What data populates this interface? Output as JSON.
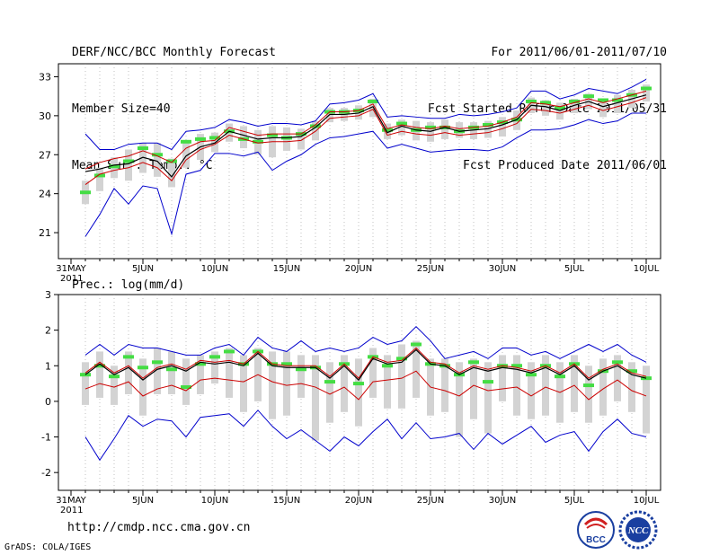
{
  "header": {
    "title": "DERF/NCC/BCC Monthly Forecast",
    "member_size": "Member Size=40",
    "variable": "Mean Surf. Temp.: °C",
    "period": "For 2011/06/01-2011/07/10",
    "start_date": "Fcst Started Refer Date 2011/05/31",
    "produced_date": "Fcst Produced Date 2011/06/01"
  },
  "footer": {
    "url": "http://cmdp.ncc.cma.gov.cn",
    "grads": "GrADS: COLA/IGES",
    "logo_bcc": "BCC",
    "logo_ncc": "NCC"
  },
  "colors": {
    "envelope": "#0000cc",
    "lower": "#cc0000",
    "mean": "#000000",
    "box": "#d3d3d3",
    "median": "#44dd44"
  },
  "chart_data": [
    {
      "type": "box-line",
      "name": "temperature",
      "title": "Mean Surf. Temp.: °C",
      "x_tick_labels": [
        "31MAY",
        "5JUN",
        "10JUN",
        "15JUN",
        "20JUN",
        "25JUN",
        "30JUN",
        "5JUL",
        "10JUL"
      ],
      "x_tick_days": [
        0,
        5,
        10,
        15,
        20,
        25,
        30,
        35,
        40
      ],
      "x_year_label": "2011",
      "ylim": [
        19,
        34
      ],
      "yticks": [
        21,
        24,
        27,
        30,
        33
      ],
      "days": [
        1,
        2,
        3,
        4,
        5,
        6,
        7,
        8,
        9,
        10,
        11,
        12,
        13,
        14,
        15,
        16,
        17,
        18,
        19,
        20,
        21,
        22,
        23,
        24,
        25,
        26,
        27,
        28,
        29,
        30,
        31,
        32,
        33,
        34,
        35,
        36,
        37,
        38,
        39,
        40
      ],
      "max": [
        28.6,
        27.4,
        27.4,
        27.8,
        27.9,
        27.9,
        27.4,
        28.8,
        28.9,
        29.1,
        29.7,
        29.5,
        29.2,
        29.4,
        29.4,
        29.3,
        29.6,
        30.9,
        31.0,
        31.2,
        31.7,
        29.9,
        30.0,
        29.9,
        29.8,
        29.8,
        30.1,
        30.0,
        30.1,
        30.3,
        30.6,
        31.9,
        31.9,
        31.3,
        31.6,
        32.1,
        31.9,
        31.7,
        32.2,
        32.8
      ],
      "mean": [
        25.7,
        25.9,
        26.2,
        26.3,
        26.8,
        26.5,
        25.3,
        26.9,
        27.6,
        27.9,
        28.8,
        28.5,
        28.2,
        28.3,
        28.3,
        28.4,
        29.1,
        30.1,
        30.1,
        30.2,
        30.7,
        28.7,
        29.2,
        28.9,
        28.8,
        29.1,
        28.8,
        28.9,
        29.0,
        29.3,
        29.7,
        30.8,
        30.7,
        30.4,
        30.8,
        31.1,
        30.7,
        31.0,
        31.3,
        31.6
      ],
      "upper": [
        25.9,
        26.4,
        26.7,
        26.9,
        27.3,
        26.9,
        26.4,
        27.5,
        28.0,
        28.1,
        29.1,
        28.8,
        28.5,
        28.6,
        28.6,
        28.6,
        29.3,
        30.3,
        30.3,
        30.4,
        30.9,
        29.0,
        29.3,
        29.1,
        29.0,
        29.2,
        29.0,
        29.1,
        29.2,
        29.5,
        29.9,
        31.0,
        30.9,
        30.7,
        31.0,
        31.3,
        31.0,
        31.3,
        31.6,
        31.9
      ],
      "lower": [
        24.7,
        25.5,
        25.8,
        26.0,
        26.4,
        26.0,
        25.0,
        26.6,
        27.4,
        27.8,
        28.5,
        28.2,
        27.9,
        28.0,
        28.0,
        28.1,
        28.8,
        29.8,
        29.9,
        30.0,
        30.5,
        28.5,
        28.8,
        28.6,
        28.5,
        28.7,
        28.5,
        28.6,
        28.7,
        29.0,
        29.4,
        30.5,
        30.4,
        30.2,
        30.5,
        30.8,
        30.4,
        30.7,
        31.0,
        31.4
      ],
      "min": [
        20.7,
        22.4,
        24.4,
        23.2,
        24.6,
        24.4,
        20.9,
        25.5,
        25.8,
        27.1,
        27.1,
        26.9,
        27.2,
        25.8,
        26.5,
        27.0,
        27.8,
        28.3,
        28.4,
        28.6,
        28.8,
        27.5,
        27.8,
        27.5,
        27.2,
        27.3,
        27.4,
        27.4,
        27.3,
        27.6,
        28.3,
        28.9,
        28.9,
        29.0,
        29.3,
        29.7,
        29.4,
        29.6,
        30.2,
        30.2
      ],
      "box_high": [
        25.0,
        26.0,
        26.8,
        27.4,
        27.9,
        27.9,
        26.7,
        27.9,
        28.6,
        28.7,
        29.4,
        29.2,
        28.9,
        29.2,
        29.1,
        29.0,
        29.6,
        30.6,
        30.6,
        30.8,
        31.3,
        29.4,
        29.7,
        29.6,
        29.5,
        29.7,
        29.5,
        29.5,
        29.6,
        29.9,
        30.4,
        31.4,
        31.2,
        31.0,
        31.3,
        31.7,
        31.3,
        31.6,
        32.0,
        32.4
      ],
      "box_low": [
        23.2,
        24.2,
        25.2,
        25.0,
        25.6,
        25.3,
        24.5,
        26.0,
        26.6,
        27.2,
        28.0,
        27.5,
        27.0,
        26.8,
        27.3,
        27.4,
        28.1,
        29.5,
        29.6,
        29.7,
        29.9,
        28.2,
        28.5,
        28.1,
        28.0,
        28.2,
        28.3,
        28.2,
        28.3,
        28.4,
        28.9,
        30.2,
        30.0,
        29.7,
        30.2,
        30.5,
        29.9,
        30.2,
        30.6,
        31.1
      ],
      "median": [
        24.1,
        25.4,
        26.1,
        26.5,
        27.5,
        27.0,
        26.5,
        28.0,
        28.2,
        28.3,
        28.8,
        28.2,
        28.0,
        28.5,
        28.3,
        28.6,
        29.2,
        30.3,
        30.3,
        30.4,
        31.1,
        28.9,
        29.4,
        28.9,
        29.1,
        29.1,
        28.8,
        29.1,
        29.3,
        29.5,
        29.7,
        31.1,
        31.0,
        30.6,
        31.1,
        31.5,
        31.2,
        31.2,
        31.6,
        32.1
      ]
    },
    {
      "type": "box-line",
      "name": "precipitation",
      "title": "Prec.: log(mm/d)",
      "x_tick_labels": [
        "31MAY",
        "5JUN",
        "10JUN",
        "15JUN",
        "20JUN",
        "25JUN",
        "30JUN",
        "5JUL",
        "10JUL"
      ],
      "x_tick_days": [
        0,
        5,
        10,
        15,
        20,
        25,
        30,
        35,
        40
      ],
      "x_year_label": "2011",
      "ylim": [
        -2.5,
        3
      ],
      "yticks": [
        -2,
        -1,
        0,
        1,
        2,
        3
      ],
      "days": [
        1,
        2,
        3,
        4,
        5,
        6,
        7,
        8,
        9,
        10,
        11,
        12,
        13,
        14,
        15,
        16,
        17,
        18,
        19,
        20,
        21,
        22,
        23,
        24,
        25,
        26,
        27,
        28,
        29,
        30,
        31,
        32,
        33,
        34,
        35,
        36,
        37,
        38,
        39,
        40
      ],
      "max": [
        1.3,
        1.6,
        1.3,
        1.6,
        1.5,
        1.5,
        1.4,
        1.3,
        1.3,
        1.5,
        1.6,
        1.3,
        1.8,
        1.5,
        1.4,
        1.7,
        1.4,
        1.5,
        1.4,
        1.5,
        1.8,
        1.6,
        1.7,
        2.1,
        1.7,
        1.2,
        1.3,
        1.4,
        1.2,
        1.5,
        1.5,
        1.3,
        1.4,
        1.2,
        1.4,
        1.6,
        1.4,
        1.6,
        1.3,
        1.1
      ],
      "mean": [
        0.75,
        1.05,
        0.75,
        0.95,
        0.6,
        0.9,
        1.0,
        0.85,
        1.1,
        1.05,
        1.1,
        1.0,
        1.35,
        1.0,
        0.95,
        0.95,
        0.95,
        0.65,
        1.0,
        0.6,
        1.2,
        1.05,
        1.1,
        1.45,
        1.05,
        1.0,
        0.75,
        0.95,
        0.85,
        0.95,
        0.9,
        0.8,
        0.95,
        0.75,
        1.0,
        0.6,
        0.85,
        1.0,
        0.75,
        0.65
      ],
      "upper": [
        0.8,
        1.1,
        0.8,
        1.0,
        0.65,
        0.95,
        1.05,
        0.9,
        1.15,
        1.1,
        1.15,
        1.05,
        1.4,
        1.05,
        1.0,
        1.0,
        1.0,
        0.7,
        1.05,
        0.65,
        1.25,
        1.1,
        1.15,
        1.5,
        1.1,
        1.05,
        0.8,
        1.0,
        0.9,
        1.0,
        0.95,
        0.85,
        1.0,
        0.8,
        1.05,
        0.65,
        0.9,
        1.05,
        0.8,
        0.7
      ],
      "lower": [
        0.35,
        0.5,
        0.4,
        0.55,
        0.15,
        0.35,
        0.45,
        0.3,
        0.6,
        0.65,
        0.6,
        0.55,
        0.75,
        0.55,
        0.45,
        0.5,
        0.4,
        0.2,
        0.4,
        0.05,
        0.55,
        0.6,
        0.65,
        0.85,
        0.4,
        0.3,
        0.15,
        0.45,
        0.3,
        0.35,
        0.4,
        0.15,
        0.4,
        0.25,
        0.45,
        0.05,
        0.35,
        0.6,
        0.3,
        0.15
      ],
      "min": [
        -1.0,
        -1.65,
        -1.05,
        -0.4,
        -0.7,
        -0.5,
        -0.55,
        -1.0,
        -0.45,
        -0.4,
        -0.35,
        -0.7,
        -0.25,
        -0.7,
        -1.05,
        -0.8,
        -1.1,
        -1.4,
        -1.0,
        -1.25,
        -0.85,
        -0.5,
        -1.05,
        -0.6,
        -1.05,
        -1.0,
        -0.9,
        -1.35,
        -0.9,
        -1.2,
        -0.95,
        -0.7,
        -1.15,
        -0.95,
        -0.85,
        -1.4,
        -0.85,
        -0.5,
        -0.9,
        -1.0
      ],
      "box_high": [
        1.1,
        1.4,
        1.0,
        1.4,
        1.2,
        1.5,
        1.4,
        1.2,
        1.3,
        1.4,
        1.5,
        1.3,
        1.5,
        1.4,
        1.4,
        1.3,
        1.3,
        1.1,
        1.3,
        1.2,
        1.5,
        1.3,
        1.6,
        1.7,
        1.2,
        1.2,
        1.1,
        1.2,
        1.1,
        1.3,
        1.3,
        1.1,
        1.3,
        1.1,
        1.3,
        1.0,
        1.2,
        1.3,
        1.1,
        1.0
      ],
      "box_low": [
        -0.1,
        0.1,
        -0.1,
        0.2,
        -0.4,
        0.2,
        0.2,
        -0.1,
        0.2,
        0.5,
        0.1,
        -0.3,
        0.0,
        -0.5,
        -0.4,
        0.1,
        -1.1,
        -0.6,
        -0.3,
        -0.7,
        0.1,
        -0.2,
        -0.2,
        0.1,
        -0.4,
        -0.3,
        -1.0,
        -0.5,
        -0.9,
        0.0,
        -0.4,
        -0.5,
        -0.4,
        -0.6,
        -0.3,
        -0.6,
        -0.4,
        0.0,
        -0.3,
        -0.9
      ],
      "median": [
        0.75,
        1.0,
        0.7,
        1.25,
        0.95,
        1.1,
        0.9,
        0.4,
        1.05,
        1.25,
        1.4,
        1.05,
        1.4,
        1.05,
        1.05,
        0.9,
        0.95,
        0.55,
        1.05,
        0.5,
        1.25,
        1.0,
        1.2,
        1.6,
        1.05,
        1.0,
        0.75,
        1.1,
        0.55,
        1.0,
        1.0,
        0.75,
        1.0,
        0.7,
        1.05,
        0.45,
        0.85,
        1.1,
        0.85,
        0.65
      ]
    }
  ]
}
